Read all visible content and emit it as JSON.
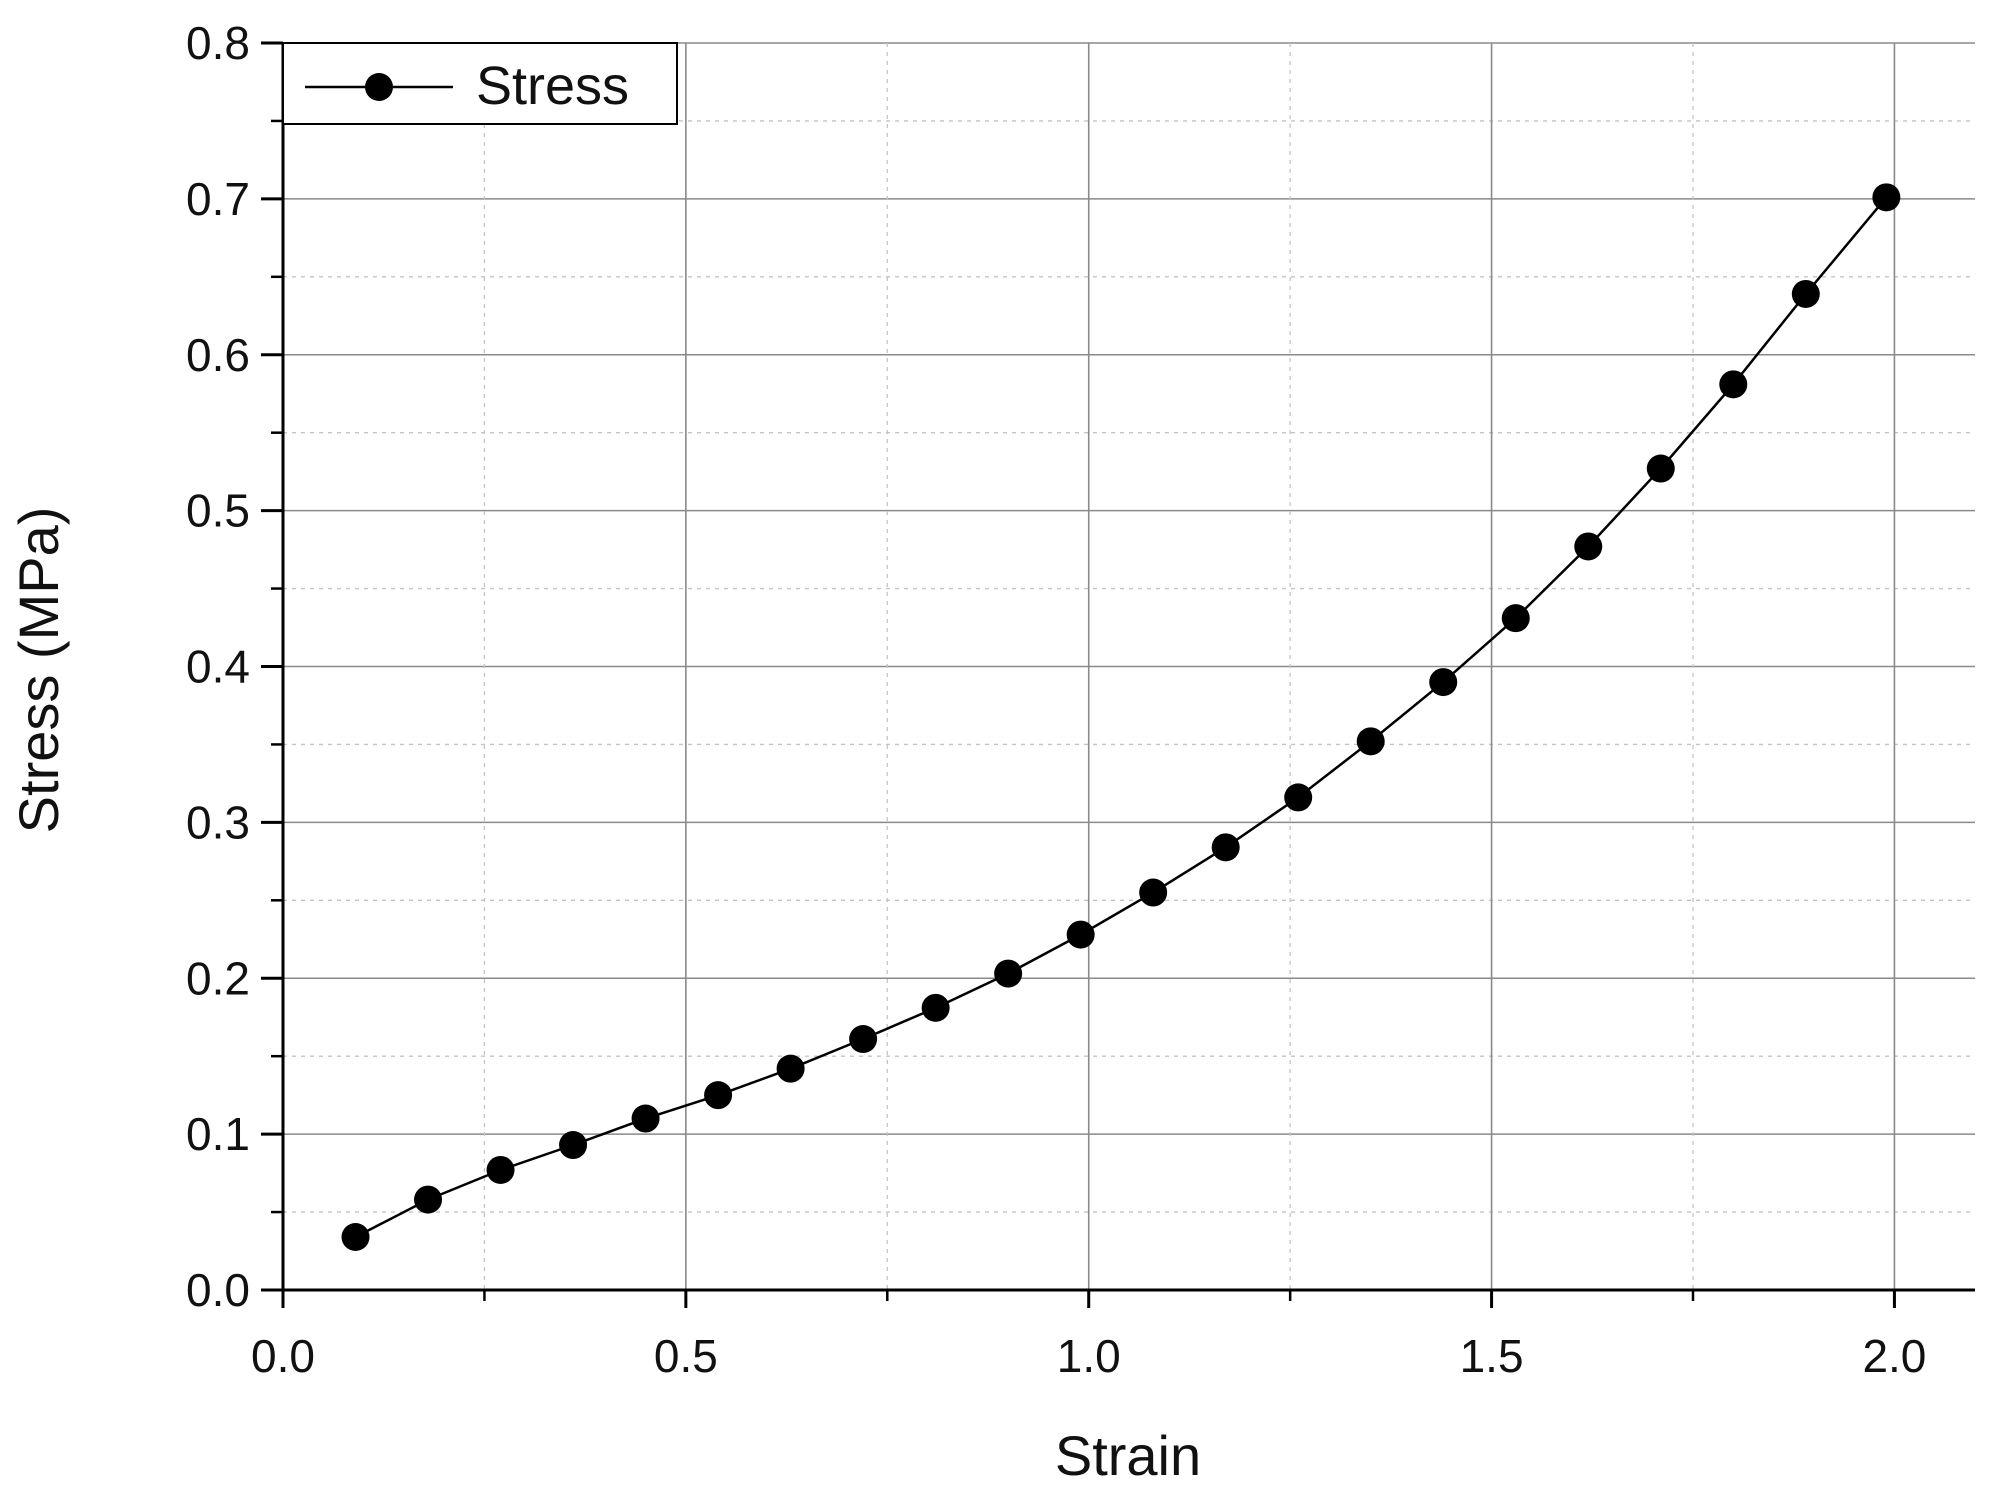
{
  "chart_data": {
    "type": "line",
    "title": "",
    "xlabel": "Strain",
    "ylabel": "Stress (MPa)",
    "xlim": [
      0.0,
      2.1
    ],
    "ylim": [
      0.0,
      0.8
    ],
    "x_ticks": [
      "0.0",
      "0.5",
      "1.0",
      "1.5",
      "2.0"
    ],
    "y_ticks": [
      "0.0",
      "0.1",
      "0.2",
      "0.3",
      "0.4",
      "0.5",
      "0.6",
      "0.7",
      "0.8"
    ],
    "grid": true,
    "legend_position": "top-left",
    "series": [
      {
        "name": "Stress",
        "color": "#000000",
        "marker": "circle",
        "x": [
          0.09,
          0.18,
          0.27,
          0.36,
          0.45,
          0.54,
          0.63,
          0.72,
          0.81,
          0.9,
          0.99,
          1.08,
          1.17,
          1.26,
          1.35,
          1.44,
          1.53,
          1.62,
          1.71,
          1.8,
          1.89,
          1.99
        ],
        "values": [
          0.034,
          0.058,
          0.077,
          0.093,
          0.11,
          0.125,
          0.142,
          0.161,
          0.181,
          0.203,
          0.228,
          0.255,
          0.284,
          0.316,
          0.352,
          0.39,
          0.431,
          0.477,
          0.527,
          0.581,
          0.639,
          0.701
        ]
      }
    ]
  }
}
